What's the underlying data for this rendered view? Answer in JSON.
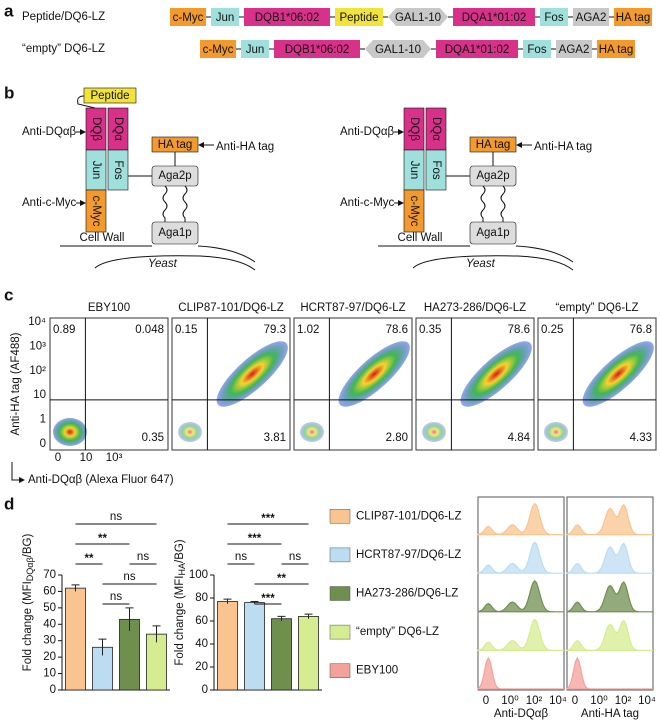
{
  "panel_labels": [
    "a",
    "b",
    "c",
    "d"
  ],
  "constructs": [
    {
      "name": "Peptide/DQ6-LZ",
      "parts": [
        "c-Myc",
        "Jun",
        "DQB1*06:02",
        "Peptide",
        "GAL1-10",
        "DQA1*01:02",
        "Fos",
        "AGA2",
        "HA tag"
      ]
    },
    {
      "name": "“empty” DQ6-LZ",
      "parts": [
        "c-Myc",
        "Jun",
        "DQB1*06:02",
        "GAL1-10",
        "DQA1*01:02",
        "Fos",
        "AGA2",
        "HA tag"
      ]
    }
  ],
  "diagram": {
    "peptide": "Peptide",
    "dqb": "DQβ",
    "dqa": "DQα",
    "jun": "Jun",
    "fos": "Fos",
    "cmyc": "c-Myc",
    "ha": "HA tag",
    "aga2": "Aga2p",
    "aga1": "Aga1p",
    "anti_dq": "Anti-DQαβ",
    "anti_ha": "Anti-HA tag",
    "anti_myc": "Anti-c-Myc",
    "wall": "Cell Wall",
    "yeast": "Yeast"
  },
  "flow": {
    "ylabel": "Anti-HA tag (AF488)",
    "xlabel": "Anti-DQαβ (Alexa Fluor 647)",
    "yticks": [
      "10⁴",
      "10³",
      "10²",
      "10",
      "1",
      "0"
    ],
    "xticks": [
      "0",
      "10",
      "10³"
    ],
    "plots": [
      {
        "title": "EBY100",
        "q": [
          "0.89",
          "0.048",
          "0.35"
        ]
      },
      {
        "title": "CLIP87-101/DQ6-LZ",
        "q": [
          "0.15",
          "79.3",
          "3.81"
        ]
      },
      {
        "title": "HCRT87-97/DQ6-LZ",
        "q": [
          "1.02",
          "78.6",
          "2.80"
        ]
      },
      {
        "title": "HA273-286/DQ6-LZ",
        "q": [
          "0.35",
          "78.6",
          "4.84"
        ]
      },
      {
        "title": "“empty” DQ6-LZ",
        "q": [
          "0.25",
          "76.8",
          "4.33"
        ]
      }
    ]
  },
  "chart_data": [
    {
      "type": "bar",
      "ylabel": {
        "main": "Fold change (MFI",
        "sub": "DQαβ",
        "end": "/BG)"
      },
      "values": [
        62,
        26,
        43,
        34
      ],
      "errors": [
        2,
        5,
        7,
        5
      ],
      "colors": [
        "#f9c48f",
        "#bcdcf2",
        "#6f8f4f",
        "#d5ec90"
      ],
      "ylim": [
        0,
        70
      ],
      "yticks": [
        0,
        10,
        20,
        30,
        40,
        50,
        60,
        70
      ],
      "significance": [
        {
          "text": "ns",
          "pair": [
            0,
            3
          ]
        },
        {
          "text": "**",
          "pair": [
            0,
            2
          ]
        },
        {
          "text": "**",
          "pair": [
            0,
            1
          ]
        },
        {
          "text": "ns",
          "pair": [
            2,
            3
          ]
        },
        {
          "text": "ns",
          "pair": [
            1,
            3
          ]
        },
        {
          "text": "ns",
          "pair": [
            1,
            2
          ]
        }
      ]
    },
    {
      "type": "bar",
      "ylabel": {
        "main": "Fold change (MFI",
        "sub": "HA",
        "end": "/BG)"
      },
      "values": [
        77,
        76,
        62,
        64
      ],
      "errors": [
        2,
        1,
        2,
        2
      ],
      "colors": [
        "#f9c48f",
        "#bcdcf2",
        "#6f8f4f",
        "#d5ec90"
      ],
      "ylim": [
        0,
        100
      ],
      "yticks": [
        0,
        20,
        40,
        60,
        80,
        100
      ],
      "significance": [
        {
          "text": "***",
          "pair": [
            0,
            3
          ]
        },
        {
          "text": "***",
          "pair": [
            0,
            2
          ]
        },
        {
          "text": "ns",
          "pair": [
            0,
            1
          ]
        },
        {
          "text": "ns",
          "pair": [
            2,
            3
          ]
        },
        {
          "text": "**",
          "pair": [
            1,
            3
          ]
        },
        {
          "text": "***",
          "pair": [
            1,
            2
          ]
        }
      ]
    }
  ],
  "legend": {
    "names": [
      "CLIP87-101/DQ6-LZ",
      "HCRT87-97/DQ6-LZ",
      "HA273-286/DQ6-LZ",
      "“empty” DQ6-LZ",
      "EBY100"
    ],
    "colors": [
      "#f9c48f",
      "#bcdcf2",
      "#6f8f4f",
      "#d5ec90",
      "#f4a09b"
    ]
  },
  "histograms": {
    "xlabels": [
      "Anti-DQαβ",
      "Anti-HA tag"
    ],
    "xticks": [
      "0",
      "10⁰",
      "10²",
      "10⁴"
    ]
  }
}
